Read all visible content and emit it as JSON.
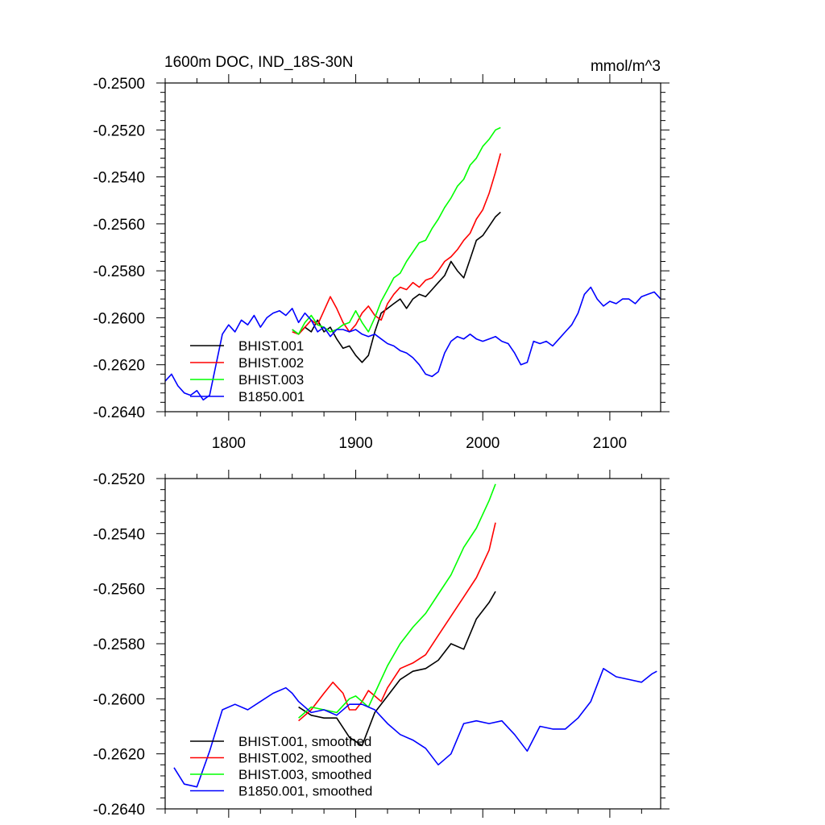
{
  "figure": {
    "title_left": "1600m DOC, IND_18S-30N",
    "title_right": "mmol/m^3"
  },
  "chart_data": [
    {
      "type": "line",
      "title": "1600m DOC, IND_18S-30N",
      "units": "mmol/m^3",
      "xlim": [
        1750,
        2140
      ],
      "ylim": [
        -0.264,
        -0.25
      ],
      "xticks": [
        1800,
        1900,
        2000,
        2100
      ],
      "xtick_labels": [
        "1800",
        "1900",
        "2000",
        "2100"
      ],
      "yticks": [
        -0.25,
        -0.252,
        -0.254,
        -0.256,
        -0.258,
        -0.26,
        -0.262,
        -0.264
      ],
      "ytick_labels": [
        "-0.2500",
        "-0.2520",
        "-0.2540",
        "-0.2560",
        "-0.2580",
        "-0.2600",
        "-0.2620",
        "-0.2640"
      ],
      "grid": false,
      "legend": "bottom-left",
      "series": [
        {
          "name": "BHIST.001",
          "color": "#000000",
          "x": [
            1850,
            1855,
            1860,
            1865,
            1870,
            1875,
            1880,
            1885,
            1890,
            1895,
            1900,
            1905,
            1910,
            1915,
            1920,
            1925,
            1930,
            1935,
            1940,
            1945,
            1950,
            1955,
            1960,
            1965,
            1970,
            1975,
            1980,
            1985,
            1990,
            1995,
            2000,
            2005,
            2010,
            2014
          ],
          "y": [
            -0.2605,
            -0.2607,
            -0.2604,
            -0.2606,
            -0.2601,
            -0.2606,
            -0.2604,
            -0.2609,
            -0.2613,
            -0.2612,
            -0.2616,
            -0.2619,
            -0.2616,
            -0.2606,
            -0.2598,
            -0.2596,
            -0.2594,
            -0.2592,
            -0.2596,
            -0.2592,
            -0.259,
            -0.2591,
            -0.2588,
            -0.2585,
            -0.2582,
            -0.2576,
            -0.258,
            -0.2583,
            -0.2575,
            -0.2567,
            -0.2565,
            -0.2561,
            -0.2557,
            -0.2555
          ]
        },
        {
          "name": "BHIST.002",
          "color": "#ff0000",
          "x": [
            1850,
            1855,
            1860,
            1865,
            1870,
            1875,
            1880,
            1885,
            1890,
            1895,
            1900,
            1905,
            1910,
            1915,
            1920,
            1925,
            1930,
            1935,
            1940,
            1945,
            1950,
            1955,
            1960,
            1965,
            1970,
            1975,
            1980,
            1985,
            1990,
            1995,
            2000,
            2005,
            2010,
            2014
          ],
          "y": [
            -0.2606,
            -0.2607,
            -0.2604,
            -0.2601,
            -0.2603,
            -0.2597,
            -0.2591,
            -0.2596,
            -0.2602,
            -0.2606,
            -0.2603,
            -0.2598,
            -0.2595,
            -0.2599,
            -0.2601,
            -0.2594,
            -0.259,
            -0.2587,
            -0.2588,
            -0.2585,
            -0.2587,
            -0.2584,
            -0.2583,
            -0.258,
            -0.2576,
            -0.2574,
            -0.2571,
            -0.2567,
            -0.2564,
            -0.2558,
            -0.2554,
            -0.2547,
            -0.2538,
            -0.253
          ]
        },
        {
          "name": "BHIST.003",
          "color": "#00ff00",
          "x": [
            1850,
            1855,
            1860,
            1865,
            1870,
            1875,
            1880,
            1885,
            1890,
            1895,
            1900,
            1905,
            1910,
            1915,
            1920,
            1925,
            1930,
            1935,
            1940,
            1945,
            1950,
            1955,
            1960,
            1965,
            1970,
            1975,
            1980,
            1985,
            1990,
            1995,
            2000,
            2005,
            2010,
            2014
          ],
          "y": [
            -0.2605,
            -0.2607,
            -0.2602,
            -0.2599,
            -0.2603,
            -0.2604,
            -0.2606,
            -0.2605,
            -0.2603,
            -0.2602,
            -0.2597,
            -0.2602,
            -0.2606,
            -0.26,
            -0.2593,
            -0.2588,
            -0.2583,
            -0.2581,
            -0.2576,
            -0.2572,
            -0.2568,
            -0.2567,
            -0.2562,
            -0.2558,
            -0.2553,
            -0.2549,
            -0.2544,
            -0.2541,
            -0.2535,
            -0.2532,
            -0.2527,
            -0.2524,
            -0.252,
            -0.2519
          ]
        },
        {
          "name": "B1850.001",
          "color": "#0000ff",
          "x": [
            1750,
            1755,
            1760,
            1765,
            1770,
            1775,
            1780,
            1785,
            1790,
            1795,
            1800,
            1805,
            1810,
            1815,
            1820,
            1825,
            1830,
            1835,
            1840,
            1845,
            1850,
            1855,
            1860,
            1865,
            1870,
            1875,
            1880,
            1885,
            1890,
            1895,
            1900,
            1905,
            1910,
            1915,
            1920,
            1925,
            1930,
            1935,
            1940,
            1945,
            1950,
            1955,
            1960,
            1965,
            1970,
            1975,
            1980,
            1985,
            1990,
            1995,
            2000,
            2005,
            2010,
            2015,
            2020,
            2025,
            2030,
            2035,
            2040,
            2045,
            2050,
            2055,
            2060,
            2065,
            2070,
            2075,
            2080,
            2085,
            2090,
            2095,
            2100,
            2105,
            2110,
            2115,
            2120,
            2125,
            2130,
            2135,
            2140
          ],
          "y": [
            -0.2627,
            -0.2624,
            -0.2629,
            -0.2632,
            -0.2633,
            -0.2631,
            -0.2635,
            -0.2633,
            -0.262,
            -0.2607,
            -0.2603,
            -0.2606,
            -0.2601,
            -0.2603,
            -0.2599,
            -0.2604,
            -0.26,
            -0.2598,
            -0.2597,
            -0.2599,
            -0.2596,
            -0.2602,
            -0.2598,
            -0.2601,
            -0.2606,
            -0.2604,
            -0.2608,
            -0.2605,
            -0.2605,
            -0.2606,
            -0.2605,
            -0.2607,
            -0.2608,
            -0.2607,
            -0.2609,
            -0.2611,
            -0.2612,
            -0.2614,
            -0.2615,
            -0.2617,
            -0.262,
            -0.2624,
            -0.2625,
            -0.2623,
            -0.2615,
            -0.261,
            -0.2608,
            -0.2609,
            -0.2607,
            -0.2609,
            -0.261,
            -0.2609,
            -0.2608,
            -0.261,
            -0.2611,
            -0.2615,
            -0.262,
            -0.2619,
            -0.261,
            -0.2611,
            -0.261,
            -0.2612,
            -0.2609,
            -0.2606,
            -0.2603,
            -0.2598,
            -0.259,
            -0.2587,
            -0.2592,
            -0.2595,
            -0.2593,
            -0.2594,
            -0.2592,
            -0.2592,
            -0.2594,
            -0.2591,
            -0.259,
            -0.2589,
            -0.2592
          ]
        }
      ]
    },
    {
      "type": "line",
      "xlim": [
        1750,
        2140
      ],
      "ylim": [
        -0.264,
        -0.252
      ],
      "xticks": [
        1800,
        1900,
        2000,
        2100
      ],
      "yticks": [
        -0.252,
        -0.254,
        -0.256,
        -0.258,
        -0.26,
        -0.262,
        -0.264
      ],
      "ytick_labels": [
        "-0.2520",
        "-0.2540",
        "-0.2560",
        "-0.2580",
        "-0.2600",
        "-0.2620",
        "-0.2640"
      ],
      "grid": false,
      "legend": "bottom-left",
      "series": [
        {
          "name": "BHIST.001, smoothed",
          "color": "#000000",
          "x": [
            1855,
            1865,
            1875,
            1885,
            1895,
            1905,
            1915,
            1925,
            1935,
            1945,
            1955,
            1965,
            1975,
            1985,
            1995,
            2005,
            2010
          ],
          "y": [
            -0.2603,
            -0.2606,
            -0.2607,
            -0.2607,
            -0.2614,
            -0.2617,
            -0.2605,
            -0.2599,
            -0.2593,
            -0.259,
            -0.2589,
            -0.2586,
            -0.258,
            -0.2582,
            -0.2571,
            -0.2565,
            -0.2561
          ]
        },
        {
          "name": "BHIST.002, smoothed",
          "color": "#ff0000",
          "x": [
            1855,
            1865,
            1875,
            1882,
            1890,
            1895,
            1900,
            1905,
            1910,
            1915,
            1920,
            1925,
            1935,
            1945,
            1955,
            1965,
            1975,
            1985,
            1995,
            2005,
            2010
          ],
          "y": [
            -0.2608,
            -0.2604,
            -0.2598,
            -0.2594,
            -0.2598,
            -0.2604,
            -0.2604,
            -0.2601,
            -0.2597,
            -0.2599,
            -0.2601,
            -0.2596,
            -0.2589,
            -0.2587,
            -0.2584,
            -0.2577,
            -0.257,
            -0.2563,
            -0.2556,
            -0.2546,
            -0.2536
          ]
        },
        {
          "name": "BHIST.003, smoothed",
          "color": "#00ff00",
          "x": [
            1855,
            1865,
            1875,
            1885,
            1895,
            1900,
            1905,
            1910,
            1915,
            1925,
            1935,
            1945,
            1955,
            1965,
            1975,
            1985,
            1995,
            2005,
            2010
          ],
          "y": [
            -0.2607,
            -0.2603,
            -0.2604,
            -0.2605,
            -0.26,
            -0.2599,
            -0.2601,
            -0.2603,
            -0.2598,
            -0.2588,
            -0.258,
            -0.2574,
            -0.2569,
            -0.2562,
            -0.2555,
            -0.2545,
            -0.2538,
            -0.2528,
            -0.2522
          ]
        },
        {
          "name": "B1850.001, smoothed",
          "color": "#0000ff",
          "x": [
            1757,
            1765,
            1775,
            1785,
            1795,
            1805,
            1815,
            1825,
            1835,
            1845,
            1850,
            1855,
            1865,
            1875,
            1885,
            1895,
            1905,
            1915,
            1925,
            1935,
            1945,
            1955,
            1965,
            1975,
            1985,
            1995,
            2005,
            2015,
            2025,
            2035,
            2045,
            2055,
            2065,
            2075,
            2085,
            2095,
            2105,
            2115,
            2125,
            2133,
            2137
          ],
          "y": [
            -0.2625,
            -0.2631,
            -0.2632,
            -0.2619,
            -0.2604,
            -0.2602,
            -0.2604,
            -0.2601,
            -0.2598,
            -0.2596,
            -0.2598,
            -0.2601,
            -0.2605,
            -0.2604,
            -0.2606,
            -0.2602,
            -0.2602,
            -0.2604,
            -0.2609,
            -0.2613,
            -0.2615,
            -0.2618,
            -0.2624,
            -0.262,
            -0.2609,
            -0.2608,
            -0.2609,
            -0.2608,
            -0.2613,
            -0.2619,
            -0.261,
            -0.2611,
            -0.2611,
            -0.2607,
            -0.2601,
            -0.2589,
            -0.2592,
            -0.2593,
            -0.2594,
            -0.2591,
            -0.259
          ]
        }
      ]
    }
  ]
}
